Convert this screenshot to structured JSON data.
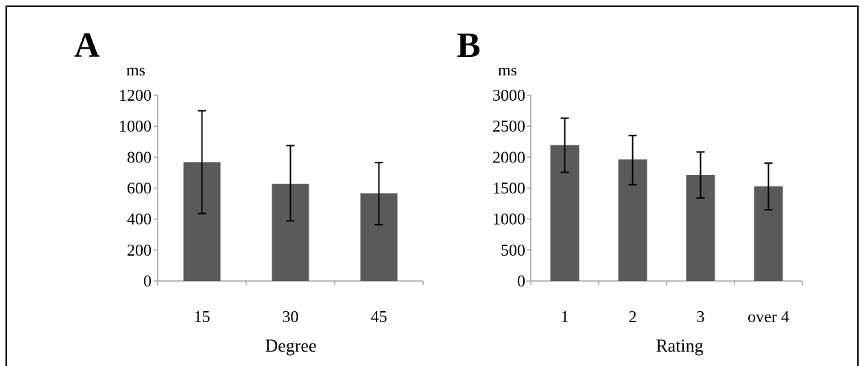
{
  "colors": {
    "bar": "#5a5a5a",
    "axis": "#a0a0a0",
    "error": "#000000"
  },
  "chart_data": [
    {
      "type": "bar",
      "panel_label": "A",
      "unit_label": "ms",
      "xlabel": "Degree",
      "categories": [
        "15",
        "30",
        "45"
      ],
      "values": [
        768,
        628,
        566
      ],
      "error_high": [
        1100,
        875,
        765
      ],
      "error_low": [
        436,
        388,
        364
      ],
      "ylim": [
        0,
        1200
      ],
      "yticks": [
        0,
        200,
        400,
        600,
        800,
        1000,
        1200
      ],
      "grid": false
    },
    {
      "type": "bar",
      "panel_label": "B",
      "unit_label": "ms",
      "xlabel": "Rating",
      "categories": [
        "1",
        "2",
        "3",
        "over 4"
      ],
      "values": [
        2195,
        1965,
        1715,
        1530
      ],
      "error_high": [
        2630,
        2350,
        2085,
        1905
      ],
      "error_low": [
        1755,
        1555,
        1340,
        1150
      ],
      "ylim": [
        0,
        3000
      ],
      "yticks": [
        0,
        500,
        1000,
        1500,
        2000,
        2500,
        3000
      ],
      "grid": false
    }
  ]
}
